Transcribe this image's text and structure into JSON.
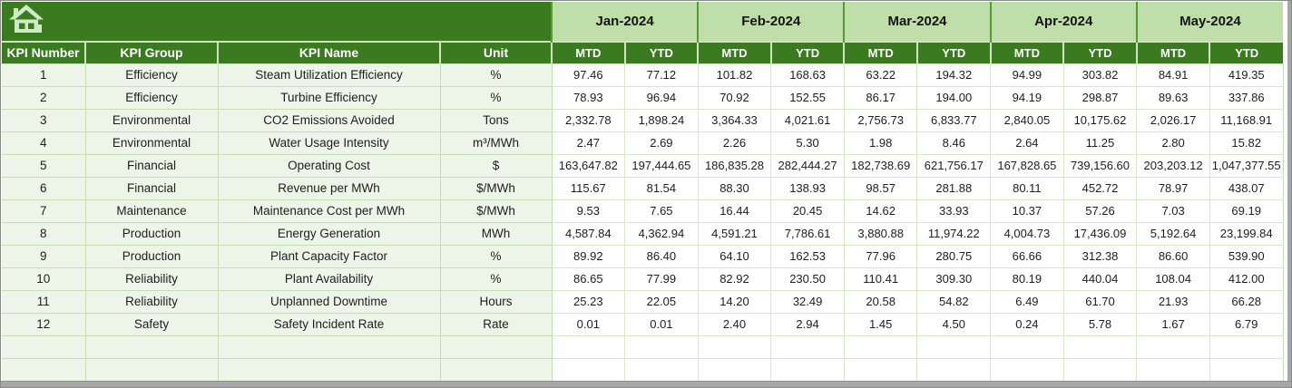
{
  "colors": {
    "header_dark_green": "#3B7B1F",
    "month_band_green": "#BFDFAA",
    "left_column_fill": "#EDF5E8",
    "gridline_green": "#C6DEB4",
    "scrollbar_gray": "#A7A7A7"
  },
  "icons": {
    "corner": "home-icon"
  },
  "table": {
    "months": [
      "Jan-2024",
      "Feb-2024",
      "Mar-2024",
      "Apr-2024",
      "May-2024"
    ],
    "sub_headers": [
      "MTD",
      "YTD"
    ],
    "left_headers": [
      "KPI Number",
      "KPI Group",
      "KPI Name",
      "Unit"
    ],
    "empty_row_count": 2,
    "rows": [
      {
        "kpi_number": "1",
        "kpi_group": "Efficiency",
        "kpi_name": "Steam Utilization Efficiency",
        "unit": "%",
        "values": [
          "97.46",
          "77.12",
          "101.82",
          "168.63",
          "63.22",
          "194.32",
          "94.99",
          "303.82",
          "84.91",
          "419.35"
        ]
      },
      {
        "kpi_number": "2",
        "kpi_group": "Efficiency",
        "kpi_name": "Turbine Efficiency",
        "unit": "%",
        "values": [
          "78.93",
          "96.94",
          "70.92",
          "152.55",
          "86.17",
          "194.00",
          "94.19",
          "298.87",
          "89.63",
          "337.86"
        ]
      },
      {
        "kpi_number": "3",
        "kpi_group": "Environmental",
        "kpi_name": "CO2 Emissions Avoided",
        "unit": "Tons",
        "values": [
          "2,332.78",
          "1,898.24",
          "3,364.33",
          "4,021.61",
          "2,756.73",
          "6,833.77",
          "2,840.05",
          "10,175.62",
          "2,026.17",
          "11,168.91"
        ]
      },
      {
        "kpi_number": "4",
        "kpi_group": "Environmental",
        "kpi_name": "Water Usage Intensity",
        "unit": "m³/MWh",
        "values": [
          "2.47",
          "2.69",
          "2.26",
          "5.30",
          "1.98",
          "8.46",
          "2.64",
          "11.25",
          "2.80",
          "15.82"
        ]
      },
      {
        "kpi_number": "5",
        "kpi_group": "Financial",
        "kpi_name": "Operating Cost",
        "unit": "$",
        "values": [
          "163,647.82",
          "197,444.65",
          "186,835.28",
          "282,444.27",
          "182,738.69",
          "621,756.17",
          "167,828.65",
          "739,156.60",
          "203,203.12",
          "1,047,377.55"
        ]
      },
      {
        "kpi_number": "6",
        "kpi_group": "Financial",
        "kpi_name": "Revenue per MWh",
        "unit": "$/MWh",
        "values": [
          "115.67",
          "81.54",
          "88.30",
          "138.93",
          "98.57",
          "281.88",
          "80.11",
          "452.72",
          "78.97",
          "438.07"
        ]
      },
      {
        "kpi_number": "7",
        "kpi_group": "Maintenance",
        "kpi_name": "Maintenance Cost per MWh",
        "unit": "$/MWh",
        "values": [
          "9.53",
          "7.65",
          "16.44",
          "20.45",
          "14.62",
          "33.93",
          "10.37",
          "57.26",
          "7.03",
          "69.19"
        ]
      },
      {
        "kpi_number": "8",
        "kpi_group": "Production",
        "kpi_name": "Energy Generation",
        "unit": "MWh",
        "values": [
          "4,587.84",
          "4,362.94",
          "4,591.21",
          "7,786.61",
          "3,880.88",
          "11,974.22",
          "4,004.73",
          "17,436.09",
          "5,192.64",
          "23,199.84"
        ]
      },
      {
        "kpi_number": "9",
        "kpi_group": "Production",
        "kpi_name": "Plant Capacity Factor",
        "unit": "%",
        "values": [
          "89.92",
          "86.40",
          "64.10",
          "162.53",
          "77.96",
          "280.75",
          "66.66",
          "312.38",
          "86.60",
          "539.90"
        ]
      },
      {
        "kpi_number": "10",
        "kpi_group": "Reliability",
        "kpi_name": "Plant Availability",
        "unit": "%",
        "values": [
          "86.65",
          "77.99",
          "82.92",
          "230.50",
          "110.41",
          "309.30",
          "80.19",
          "440.04",
          "108.04",
          "412.00"
        ]
      },
      {
        "kpi_number": "11",
        "kpi_group": "Reliability",
        "kpi_name": "Unplanned Downtime",
        "unit": "Hours",
        "values": [
          "25.23",
          "22.05",
          "14.20",
          "32.49",
          "20.58",
          "54.82",
          "6.49",
          "61.70",
          "21.93",
          "66.28"
        ]
      },
      {
        "kpi_number": "12",
        "kpi_group": "Safety",
        "kpi_name": "Safety Incident Rate",
        "unit": "Rate",
        "values": [
          "0.01",
          "0.01",
          "2.40",
          "2.94",
          "1.45",
          "4.50",
          "0.24",
          "5.78",
          "1.67",
          "6.79"
        ]
      }
    ]
  }
}
